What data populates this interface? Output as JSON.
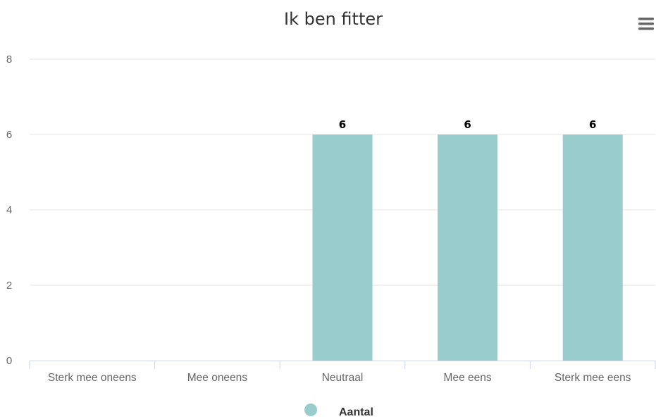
{
  "chart_data": {
    "type": "bar",
    "title": "Ik ben fitter",
    "categories": [
      "Sterk mee oneens",
      "Mee oneens",
      "Neutraal",
      "Mee eens",
      "Sterk mee eens"
    ],
    "series": [
      {
        "name": "Aantal",
        "values": [
          0,
          0,
          6,
          6,
          6
        ],
        "color": "#99cccc"
      }
    ],
    "ylim": [
      0,
      8
    ],
    "yticks": [
      0,
      2,
      4,
      6,
      8
    ],
    "data_labels": true,
    "grid": true,
    "legend": "bottom-center"
  },
  "menu": {
    "icon": "hamburger-menu-icon"
  },
  "colors": {
    "grid": "#e6e6e6",
    "axis": "#ccd6eb",
    "bar": "#99cccc"
  }
}
